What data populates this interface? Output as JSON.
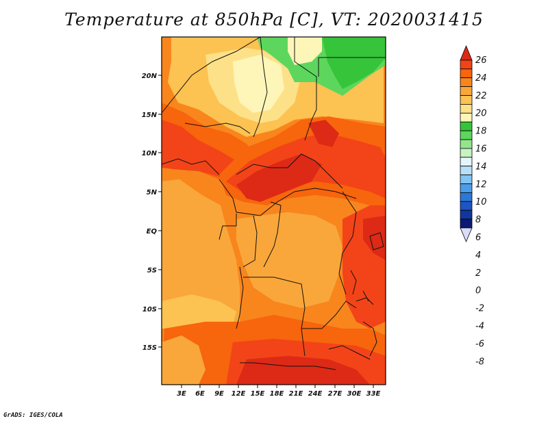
{
  "title": "Temperature at 850hPa [C], VT: 2020031415",
  "credit": "GrADS: IGES/COLA",
  "lat_labels": [
    "20N",
    "15N",
    "10N",
    "5N",
    "EQ",
    "5S",
    "10S",
    "15S"
  ],
  "lon_labels": [
    "3E",
    "6E",
    "9E",
    "12E",
    "15E",
    "18E",
    "21E",
    "24E",
    "27E",
    "30E",
    "33E"
  ],
  "colorbar": {
    "labels": [
      "26",
      "24",
      "22",
      "20",
      "18",
      "16",
      "14",
      "12",
      "10",
      "8",
      "6",
      "4",
      "2",
      "0",
      "-2",
      "-4",
      "-6",
      "-8"
    ],
    "colors": [
      "#dc2a16",
      "#f24418",
      "#f7650d",
      "#f8861d",
      "#f9a73a",
      "#fcc252",
      "#fde188",
      "#fef6b8",
      "#36c43a",
      "#5dd65d",
      "#92e58d",
      "#c6f3bf",
      "#e4f5fb",
      "#b6e0f9",
      "#82c4f3",
      "#4c9de9",
      "#2c78d7",
      "#1d56c2",
      "#1236a0",
      "#0c1a74",
      "#d9ddf7"
    ]
  },
  "map_colors": {
    "hot": "#dc2a16",
    "warm": "#f24418",
    "orange": "#f7650d",
    "light_orange": "#f8861d",
    "ocean": "#f9a73a",
    "pale": "#fcc252",
    "cream": "#fde188",
    "green": "#36c43a",
    "light_green": "#5dd65d"
  }
}
